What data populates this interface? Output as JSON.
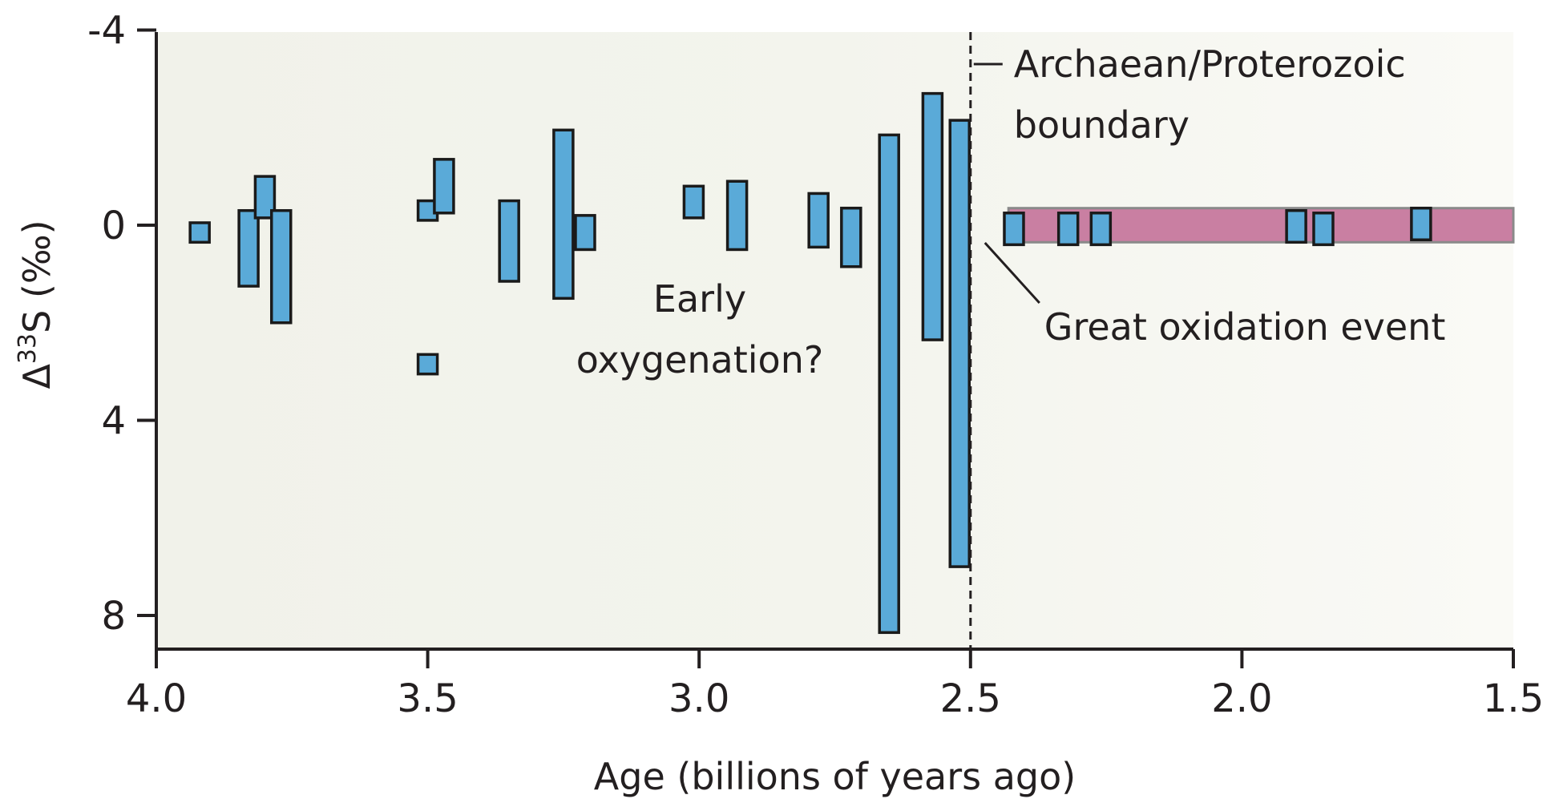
{
  "chart_data": {
    "type": "range-bar",
    "xlabel": "Age (billions of years ago)",
    "ylabel_main": "Δ",
    "ylabel_sup": "33",
    "ylabel_rest": "S (‰)",
    "xlim": [
      4.0,
      1.5
    ],
    "ylim": [
      -4,
      8.6
    ],
    "y_inverted": true,
    "x_ticks": [
      "4.0",
      "3.5",
      "3.0",
      "2.5",
      "2.0",
      "1.5"
    ],
    "x_tick_values": [
      4.0,
      3.5,
      3.0,
      2.5,
      2.0,
      1.5
    ],
    "y_ticks": [
      "-4",
      "0",
      "4",
      "8"
    ],
    "y_tick_values": [
      -4,
      0,
      4,
      8
    ],
    "colors": {
      "archaean_bg": "#f1f2ea",
      "proterozoic_bg": "#fafaf6",
      "bar_fill": "#5aaad8",
      "band_fill": "#c97fa2",
      "band_stroke": "#8a8a8a",
      "text": "#231f20"
    },
    "boundary_age": 2.5,
    "proterozoic_band": {
      "x_start": 2.43,
      "x_end": 1.5,
      "y_min": -0.35,
      "y_max": 0.35
    },
    "bars": [
      {
        "x": 3.92,
        "ymin": -0.05,
        "ymax": 0.35
      },
      {
        "x": 3.83,
        "ymin": -0.3,
        "ymax": 1.25
      },
      {
        "x": 3.8,
        "ymin": -1.0,
        "ymax": -0.15
      },
      {
        "x": 3.77,
        "ymin": -0.3,
        "ymax": 2.0
      },
      {
        "x": 3.5,
        "ymin": -0.5,
        "ymax": -0.1
      },
      {
        "x": 3.47,
        "ymin": -1.35,
        "ymax": -0.25
      },
      {
        "x": 3.5,
        "ymin": 2.65,
        "ymax": 3.05
      },
      {
        "x": 3.35,
        "ymin": -0.5,
        "ymax": 1.15
      },
      {
        "x": 3.25,
        "ymin": -1.95,
        "ymax": 1.5
      },
      {
        "x": 3.21,
        "ymin": -0.2,
        "ymax": 0.5
      },
      {
        "x": 3.01,
        "ymin": -0.8,
        "ymax": -0.15
      },
      {
        "x": 2.93,
        "ymin": -0.9,
        "ymax": 0.5
      },
      {
        "x": 2.78,
        "ymin": -0.65,
        "ymax": 0.45
      },
      {
        "x": 2.72,
        "ymin": -0.35,
        "ymax": 0.85
      },
      {
        "x": 2.65,
        "ymin": -1.85,
        "ymax": 8.35
      },
      {
        "x": 2.57,
        "ymin": -2.7,
        "ymax": 2.35
      },
      {
        "x": 2.52,
        "ymin": -2.15,
        "ymax": 7.0
      },
      {
        "x": 2.42,
        "ymin": -0.25,
        "ymax": 0.4
      },
      {
        "x": 2.32,
        "ymin": -0.25,
        "ymax": 0.4
      },
      {
        "x": 2.26,
        "ymin": -0.25,
        "ymax": 0.4
      },
      {
        "x": 1.9,
        "ymin": -0.3,
        "ymax": 0.35
      },
      {
        "x": 1.85,
        "ymin": -0.25,
        "ymax": 0.4
      },
      {
        "x": 1.67,
        "ymin": -0.35,
        "ymax": 0.3
      }
    ],
    "annotations": {
      "boundary_line1": "Archaean/Proterozoic",
      "boundary_line2": "boundary",
      "goe": "Great oxidation event",
      "early_line1": "Early",
      "early_line2": "oxygenation?"
    }
  }
}
